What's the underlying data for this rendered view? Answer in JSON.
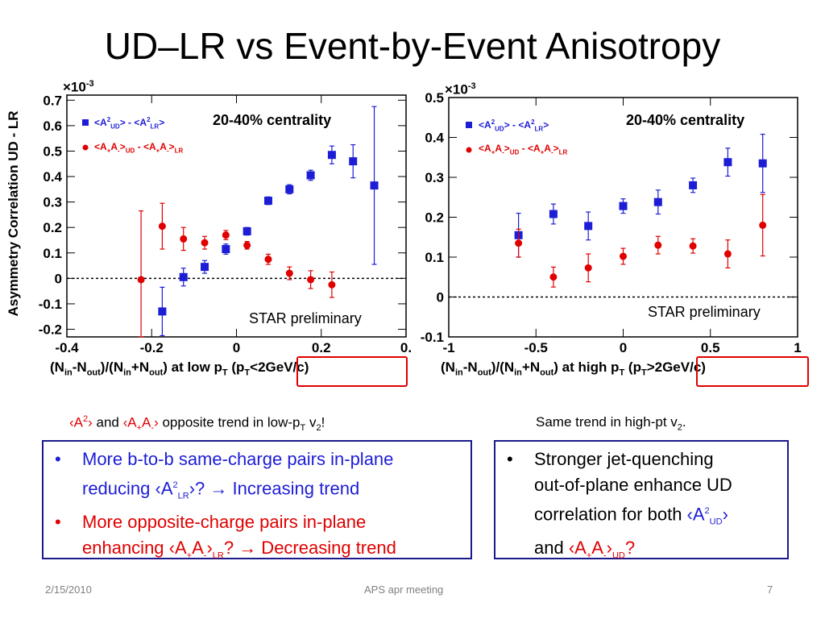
{
  "title": "UD–LR vs Event-by-Event Anisotropy",
  "colors": {
    "blue": "#1d1dd6",
    "red": "#e00000",
    "box_border": "#1a1a8c"
  },
  "chart_data": [
    {
      "type": "scatter",
      "ylabel": "Asymmetry Correlation UD - LR",
      "y_multiplier": "×10",
      "y_multiplier_exp": "-3",
      "annotation": "20-40% centrality",
      "watermark": "STAR preliminary",
      "xlim": [
        -0.4,
        0.4
      ],
      "ylim": [
        -0.23,
        0.72
      ],
      "x_ticks": [
        "-0.4",
        "-0.2",
        "0",
        "0.2",
        "0."
      ],
      "y_ticks": [
        "-0.2",
        "-0.1",
        "0",
        "0.1",
        "0.2",
        "0.3",
        "0.4",
        "0.5",
        "0.6",
        "0.7"
      ],
      "xcaption": {
        "a": "(N",
        "a_sub": "in",
        "b": "-N",
        "b_sub": "out",
        "c": ")/(N",
        "c_sub": "in",
        "d": "+N",
        "d_sub": "out",
        "e": ") at low p",
        "e_sub": "T",
        "f": " (p",
        "f_sub": "T",
        "g": "<2GeV/c)"
      },
      "series": [
        {
          "legend": {
            "p1": "<A",
            "p1_sup": "2",
            "p1_sub": "UD",
            "p2": "> - <A",
            "p2_sup": "2",
            "p2_sub": "LR",
            "p3": ">"
          },
          "color": "#1d1dd6",
          "marker": "square",
          "x": [
            -0.175,
            -0.125,
            -0.075,
            -0.025,
            0.025,
            0.075,
            0.125,
            0.175,
            0.225,
            0.275,
            0.325
          ],
          "y": [
            -0.13,
            0.005,
            0.045,
            0.115,
            0.185,
            0.305,
            0.35,
            0.405,
            0.485,
            0.46,
            0.365
          ],
          "err": [
            0.095,
            0.035,
            0.025,
            0.02,
            0.015,
            0.015,
            0.018,
            0.02,
            0.035,
            0.065,
            0.31
          ]
        },
        {
          "legend": {
            "p1": "<A",
            "p1_sub1": "+",
            "p2": "A",
            "p2_sub1": "-",
            "p3": ">",
            "p3_sub": "UD",
            "p4": " - <A",
            "p4_sub1": "+",
            "p5": "A",
            "p5_sub1": "-",
            "p6": ">",
            "p6_sub": "LR"
          },
          "color": "#e00000",
          "marker": "circle",
          "x": [
            -0.225,
            -0.175,
            -0.125,
            -0.075,
            -0.025,
            0.025,
            0.075,
            0.125,
            0.175,
            0.225,
            0.275
          ],
          "y": [
            -0.005,
            0.205,
            0.155,
            0.14,
            0.17,
            0.13,
            0.075,
            0.02,
            -0.005,
            -0.025,
            null
          ],
          "err": [
            0.27,
            0.09,
            0.045,
            0.025,
            0.018,
            0.015,
            0.02,
            0.025,
            0.035,
            0.05,
            0
          ]
        }
      ]
    },
    {
      "type": "scatter",
      "ylabel": "",
      "y_multiplier": "×10",
      "y_multiplier_exp": "-3",
      "annotation": "20-40% centrality",
      "watermark": "STAR preliminary",
      "xlim": [
        -1,
        1
      ],
      "ylim": [
        -0.1,
        0.5
      ],
      "x_ticks": [
        "-1",
        "-0.5",
        "0",
        "0.5",
        "1"
      ],
      "y_ticks": [
        "-0.1",
        "0",
        "0.1",
        "0.2",
        "0.3",
        "0.4",
        "0.5"
      ],
      "xcaption": {
        "a": "(N",
        "a_sub": "in",
        "b": "-N",
        "b_sub": "out",
        "c": ")/(N",
        "c_sub": "in",
        "d": "+N",
        "d_sub": "out",
        "e": ") at high p",
        "e_sub": "T",
        "f": " (p",
        "f_sub": "T",
        "g": ">2GeV/c)"
      },
      "series": [
        {
          "legend": {
            "p1": "<A",
            "p1_sup": "2",
            "p1_sub": "UD",
            "p2": "> - <A",
            "p2_sup": "2",
            "p2_sub": "LR",
            "p3": ">"
          },
          "color": "#1d1dd6",
          "marker": "square",
          "x": [
            -0.6,
            -0.4,
            -0.2,
            0.0,
            0.2,
            0.4,
            0.6,
            0.8
          ],
          "y": [
            0.155,
            0.208,
            0.178,
            0.228,
            0.238,
            0.28,
            0.338,
            0.335
          ],
          "err": [
            0.055,
            0.025,
            0.035,
            0.018,
            0.03,
            0.018,
            0.035,
            0.073
          ]
        },
        {
          "legend": {
            "p1": "<A",
            "p1_sub1": "+",
            "p2": "A",
            "p2_sub1": "-",
            "p3": ">",
            "p3_sub": "UD",
            "p4": " - <A",
            "p4_sub1": "+",
            "p5": "A",
            "p5_sub1": "-",
            "p6": ">",
            "p6_sub": "LR"
          },
          "color": "#e00000",
          "marker": "circle",
          "x": [
            -0.6,
            -0.4,
            -0.2,
            0.0,
            0.2,
            0.4,
            0.6,
            0.8
          ],
          "y": [
            0.135,
            0.05,
            0.073,
            0.102,
            0.13,
            0.128,
            0.108,
            0.18
          ],
          "err": [
            0.035,
            0.025,
            0.035,
            0.02,
            0.022,
            0.018,
            0.035,
            0.077
          ]
        }
      ]
    }
  ],
  "notes": {
    "left": {
      "a": "‹A",
      "a_sup": "2",
      "b": "›",
      "c": " and ",
      "d": "‹A",
      "d_sub1": "+",
      "e": "A",
      "e_sub1": "-",
      "f": "›",
      "g": " opposite trend in low-p",
      "g_sub": "T",
      "h": " v",
      "h_sub": "2",
      "i": "!"
    },
    "right": {
      "a": "Same trend in high-pt v",
      "a_sub": "2",
      "b": "."
    }
  },
  "box_left": {
    "bullet": "•",
    "b1": {
      "l1": "More b-to-b same-charge pairs in-plane",
      "l2a": "reducing ‹A",
      "l2_sup": "2",
      "l2_sub": "LR",
      "l2b": "›? → Increasing trend"
    },
    "b2": {
      "l1": "More opposite-charge pairs in-plane",
      "l2a": "enhancing ‹A",
      "l2_sub1": "+",
      "l2b": "A",
      "l2_sub2": "-",
      "l2c": "›",
      "l2_sub3": "LR",
      "l2d": "? → Decreasing trend"
    }
  },
  "box_right": {
    "bullet": "•",
    "l1": "Stronger jet-quenching",
    "l2": "out-of-plane enhance UD",
    "l3a": "correlation for both ",
    "l3b": "‹A",
    "l3_sup": "2",
    "l3_sub": "UD",
    "l3c": "›",
    "l4a": "and ",
    "l4b": "‹A",
    "l4_sub1": "+",
    "l4c": "A",
    "l4_sub2": "-",
    "l4d": "›",
    "l4_sub3": "UD",
    "l4e": "?"
  },
  "footer": {
    "date": "2/15/2010",
    "center": "APS apr meeting",
    "page": "7"
  }
}
